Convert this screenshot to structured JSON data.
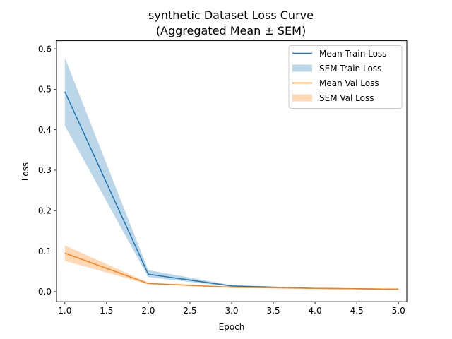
{
  "chart_data": {
    "type": "line",
    "title": "synthetic Dataset Loss Curve",
    "subtitle": "(Aggregated Mean ± SEM)",
    "xlabel": "Epoch",
    "ylabel": "Loss",
    "xlim": [
      0.9,
      5.1
    ],
    "ylim": [
      -0.025,
      0.62
    ],
    "xticks": [
      1.0,
      1.5,
      2.0,
      2.5,
      3.0,
      3.5,
      4.0,
      4.5,
      5.0
    ],
    "xtick_labels": [
      "1.0",
      "1.5",
      "2.0",
      "2.5",
      "3.0",
      "3.5",
      "4.0",
      "4.5",
      "5.0"
    ],
    "yticks": [
      0.0,
      0.1,
      0.2,
      0.3,
      0.4,
      0.5,
      0.6
    ],
    "ytick_labels": [
      "0.0",
      "0.1",
      "0.2",
      "0.3",
      "0.4",
      "0.5",
      "0.6"
    ],
    "grid": false,
    "legend_position": "top-right",
    "x": [
      1,
      2,
      3,
      4,
      5
    ],
    "series": [
      {
        "name": "Mean Train Loss",
        "band_name": "SEM Train Loss",
        "color": "#1f77b4",
        "values": [
          0.494,
          0.043,
          0.014,
          0.008,
          0.006
        ],
        "lower": [
          0.41,
          0.036,
          0.012,
          0.007,
          0.005
        ],
        "upper": [
          0.578,
          0.053,
          0.016,
          0.009,
          0.007
        ]
      },
      {
        "name": "Mean Val Loss",
        "band_name": "SEM Val Loss",
        "color": "#ff7f0e",
        "values": [
          0.095,
          0.02,
          0.011,
          0.008,
          0.006
        ],
        "lower": [
          0.076,
          0.018,
          0.01,
          0.007,
          0.005
        ],
        "upper": [
          0.114,
          0.022,
          0.012,
          0.009,
          0.007
        ]
      }
    ]
  }
}
